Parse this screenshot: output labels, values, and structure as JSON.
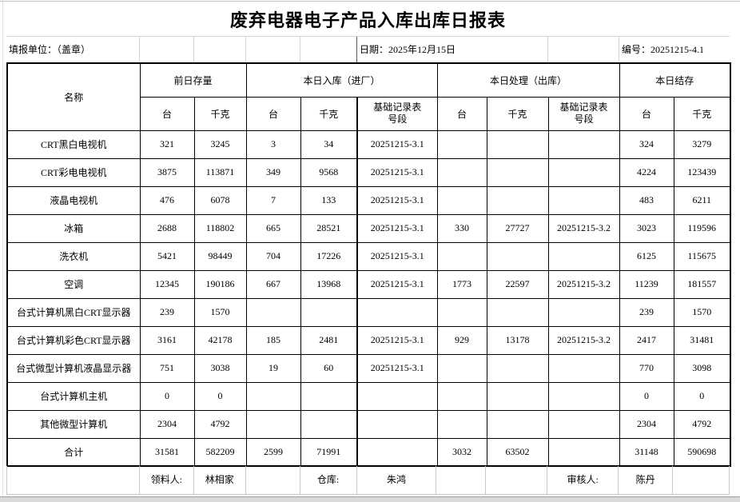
{
  "title": "废弃电器电子产品入库出库日报表",
  "info": {
    "unit": "填报单位：（盖章）",
    "date": "日期：2025年12月15日",
    "code": "编号：20251215-4.1"
  },
  "table": {
    "name_header": "名称",
    "groups": [
      {
        "label": "前日存量"
      },
      {
        "label": "本日入库（进厂）"
      },
      {
        "label": "本日处理（出库）"
      },
      {
        "label": "本日结存"
      }
    ],
    "sub_headers": [
      "台",
      "千克",
      "台",
      "千克",
      "基础记录表\n号段",
      "台",
      "千克",
      "基础记录表\n号段",
      "台",
      "千克"
    ],
    "rows": [
      {
        "cells": [
          "CRT黑白电视机",
          "321",
          "3245",
          "3",
          "34",
          "20251215-3.1",
          "",
          "",
          "",
          "324",
          "3279"
        ]
      },
      {
        "cells": [
          "CRT彩电电视机",
          "3875",
          "113871",
          "349",
          "9568",
          "20251215-3.1",
          "",
          "",
          "",
          "4224",
          "123439"
        ]
      },
      {
        "cells": [
          "液晶电视机",
          "476",
          "6078",
          "7",
          "133",
          "20251215-3.1",
          "",
          "",
          "",
          "483",
          "6211"
        ]
      },
      {
        "cells": [
          "冰箱",
          "2688",
          "118802",
          "665",
          "28521",
          "20251215-3.1",
          "330",
          "27727",
          "20251215-3.2",
          "3023",
          "119596"
        ]
      },
      {
        "cells": [
          "洗衣机",
          "5421",
          "98449",
          "704",
          "17226",
          "20251215-3.1",
          "",
          "",
          "",
          "6125",
          "115675"
        ]
      },
      {
        "cells": [
          "空调",
          "12345",
          "190186",
          "667",
          "13968",
          "20251215-3.1",
          "1773",
          "22597",
          "20251215-3.2",
          "11239",
          "181557"
        ]
      },
      {
        "cells": [
          "台式计算机黑白CRT显示器",
          "239",
          "1570",
          "",
          "",
          "",
          "",
          "",
          "",
          "239",
          "1570"
        ]
      },
      {
        "cells": [
          "台式计算机彩色CRT显示器",
          "3161",
          "42178",
          "185",
          "2481",
          "20251215-3.1",
          "929",
          "13178",
          "20251215-3.2",
          "2417",
          "31481"
        ]
      },
      {
        "cells": [
          "台式微型计算机液晶显示器",
          "751",
          "3038",
          "19",
          "60",
          "20251215-3.1",
          "",
          "",
          "",
          "770",
          "3098"
        ]
      },
      {
        "cells": [
          "台式计算机主机",
          "0",
          "0",
          "",
          "",
          "",
          "",
          "",
          "",
          "0",
          "0"
        ]
      },
      {
        "cells": [
          "其他微型计算机",
          "2304",
          "4792",
          "",
          "",
          "",
          "",
          "",
          "",
          "2304",
          "4792"
        ]
      },
      {
        "cells": [
          "合计",
          "31581",
          "582209",
          "2599",
          "71991",
          "",
          "3032",
          "63502",
          "",
          "31148",
          "590698"
        ]
      }
    ],
    "total_label": "合计"
  },
  "footer": {
    "cells": [
      "",
      "领料人:",
      "林相家",
      "",
      "仓库:",
      "朱鸿",
      "",
      "",
      "审核人:",
      "陈丹",
      ""
    ]
  },
  "colors": {
    "table_border": "#000000",
    "gridline": "#c9c9c9",
    "bottom_strip": "#d9d9d9"
  }
}
